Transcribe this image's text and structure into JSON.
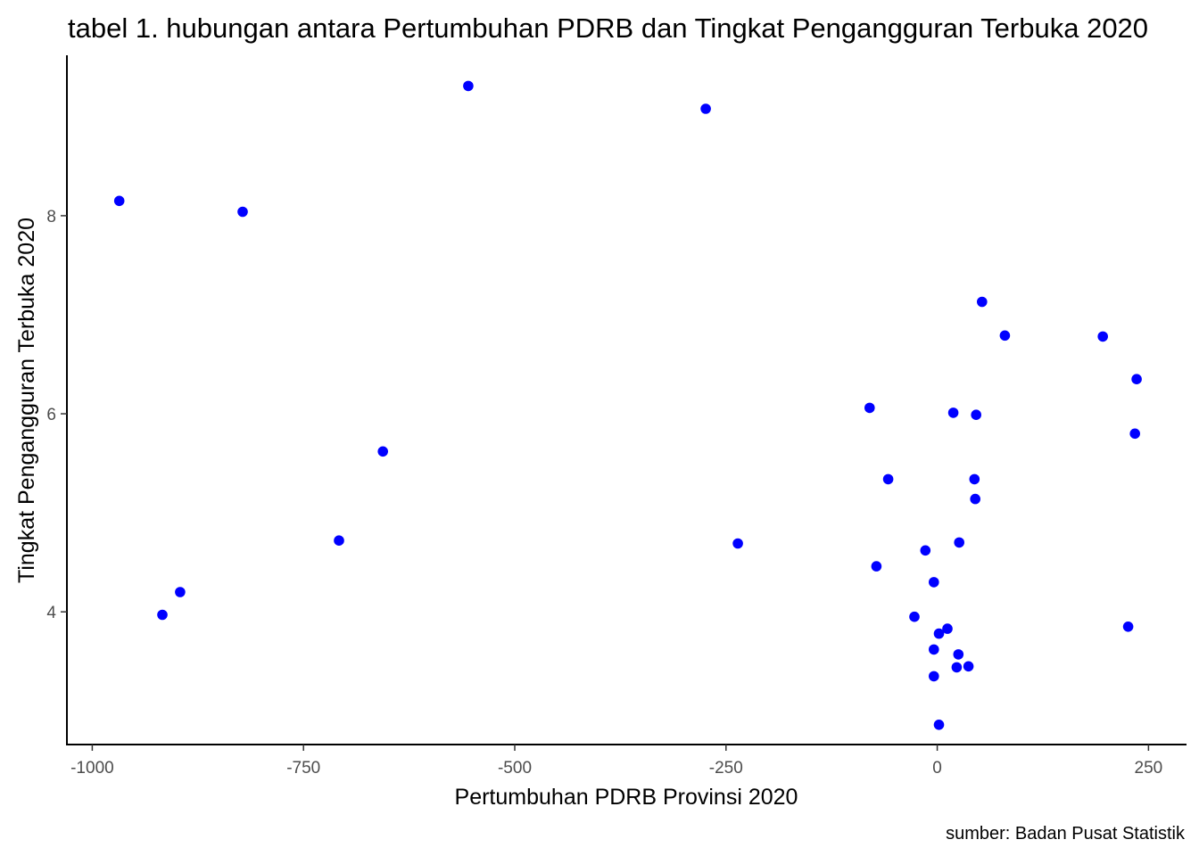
{
  "chart_data": {
    "type": "scatter",
    "title": "tabel 1. hubungan antara Pertumbuhan PDRB dan Tingkat Pengangguran Terbuka 2020",
    "xlabel": "Pertumbuhan PDRB Provinsi 2020",
    "ylabel": "Tingkat Pengangguran Terbuka 2020",
    "caption": "sumber: Badan Pusat Statistik",
    "xlim": [
      -1030,
      295
    ],
    "ylim": [
      2.66,
      9.62
    ],
    "x_ticks": [
      -1000,
      -750,
      -500,
      -250,
      0,
      250
    ],
    "y_ticks": [
      4,
      6,
      8
    ],
    "x_tick_labels": [
      "-1000",
      "-750",
      "-500",
      "-250",
      "0",
      "250"
    ],
    "y_tick_labels": [
      "4",
      "6",
      "8"
    ],
    "point_color": "#0000ff",
    "grid": false,
    "points": [
      {
        "x": -968,
        "y": 8.15
      },
      {
        "x": -822,
        "y": 8.04
      },
      {
        "x": -555,
        "y": 9.31
      },
      {
        "x": -274,
        "y": 9.08
      },
      {
        "x": -917,
        "y": 3.97
      },
      {
        "x": -896,
        "y": 4.2
      },
      {
        "x": -708,
        "y": 4.72
      },
      {
        "x": -656,
        "y": 5.62
      },
      {
        "x": -236,
        "y": 4.69
      },
      {
        "x": -80,
        "y": 6.06
      },
      {
        "x": -58,
        "y": 5.34
      },
      {
        "x": -72,
        "y": 4.46
      },
      {
        "x": -14,
        "y": 4.62
      },
      {
        "x": -4,
        "y": 4.3
      },
      {
        "x": -27,
        "y": 3.95
      },
      {
        "x": 2,
        "y": 3.78
      },
      {
        "x": 12,
        "y": 3.83
      },
      {
        "x": -4,
        "y": 3.62
      },
      {
        "x": 25,
        "y": 3.57
      },
      {
        "x": 23,
        "y": 3.44
      },
      {
        "x": 37,
        "y": 3.45
      },
      {
        "x": -4,
        "y": 3.35
      },
      {
        "x": 2,
        "y": 2.86
      },
      {
        "x": 19,
        "y": 6.01
      },
      {
        "x": 46,
        "y": 5.99
      },
      {
        "x": 44,
        "y": 5.34
      },
      {
        "x": 45,
        "y": 5.14
      },
      {
        "x": 26,
        "y": 4.7
      },
      {
        "x": 53,
        "y": 7.13
      },
      {
        "x": 80,
        "y": 6.79
      },
      {
        "x": 196,
        "y": 6.78
      },
      {
        "x": 236,
        "y": 6.35
      },
      {
        "x": 234,
        "y": 5.8
      },
      {
        "x": 226,
        "y": 3.85
      }
    ]
  }
}
